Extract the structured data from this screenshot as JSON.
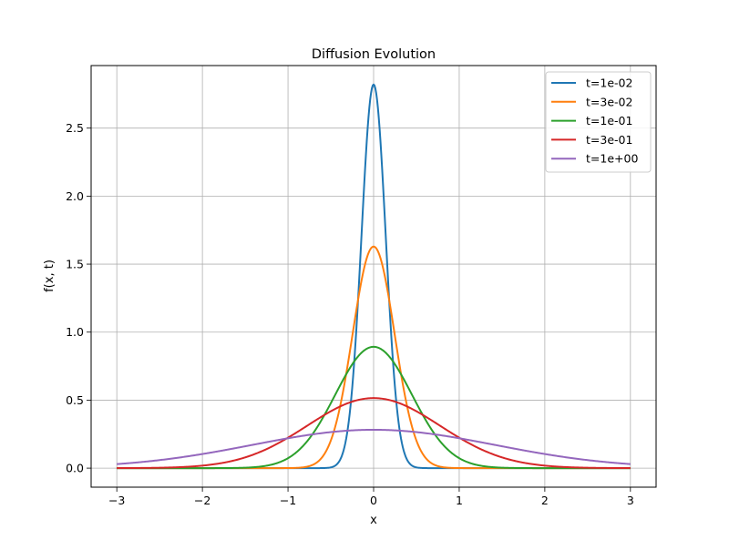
{
  "chart_data": {
    "type": "line",
    "title": "Diffusion Evolution",
    "xlabel": "x",
    "ylabel": "f(x, t)",
    "xlim": [
      -3.3,
      3.3
    ],
    "ylim": [
      -0.14,
      2.96
    ],
    "xticks": [
      -3,
      -2,
      -1,
      0,
      1,
      2,
      3
    ],
    "xtick_labels": [
      "−3",
      "−2",
      "−1",
      "0",
      "1",
      "2",
      "3"
    ],
    "yticks": [
      0.0,
      0.5,
      1.0,
      1.5,
      2.0,
      2.5
    ],
    "ytick_labels": [
      "0.0",
      "0.5",
      "1.0",
      "1.5",
      "2.0",
      "2.5"
    ],
    "grid": true,
    "legend_position": "top-right",
    "x_range": [
      -3,
      3
    ],
    "series": [
      {
        "name": "t=1e-02",
        "color": "#1f77b4",
        "peak_x": 0,
        "peak_y": 2.821,
        "sigma": 0.1414
      },
      {
        "name": "t=3e-02",
        "color": "#ff7f0e",
        "peak_x": 0,
        "peak_y": 1.629,
        "sigma": 0.2449
      },
      {
        "name": "t=1e-01",
        "color": "#2ca02c",
        "peak_x": 0,
        "peak_y": 0.892,
        "sigma": 0.4472
      },
      {
        "name": "t=3e-01",
        "color": "#d62728",
        "peak_x": 0,
        "peak_y": 0.515,
        "sigma": 0.7746
      },
      {
        "name": "t=1e+00",
        "color": "#9467bd",
        "peak_x": 0,
        "peak_y": 0.282,
        "sigma": 1.4142
      }
    ]
  }
}
